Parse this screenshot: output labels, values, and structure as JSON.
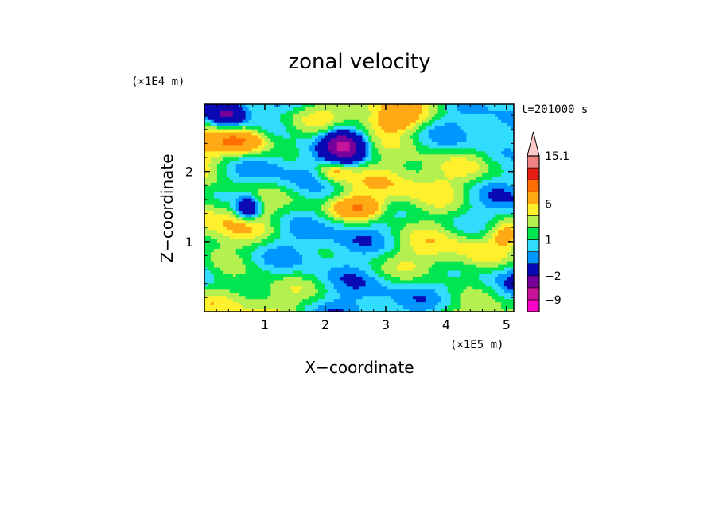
{
  "chart_data": {
    "type": "heatmap",
    "title": "zonal velocity",
    "xlabel": "X−coordinate",
    "ylabel": "Z−coordinate",
    "x_unit_label": "(×1E5 m)",
    "y_unit_label": "(×1E4 m)",
    "time_label": "t=201000 s",
    "xlim": [
      0,
      5.12
    ],
    "ylim": [
      0,
      2.96
    ],
    "x_ticks": [
      1,
      2,
      3,
      4,
      5
    ],
    "y_ticks": [
      1,
      2
    ],
    "colorbar": {
      "levels": [
        -12,
        -9,
        -6,
        -2,
        -1,
        0,
        1,
        2,
        3,
        6,
        9,
        12,
        15.1
      ],
      "labels": [
        {
          "value": 15.1,
          "text": "15.1"
        },
        {
          "value": 6,
          "text": "6"
        },
        {
          "value": 1,
          "text": "1"
        },
        {
          "value": -2,
          "text": "−2"
        },
        {
          "value": -9,
          "text": "−9"
        }
      ],
      "colors": [
        "#ff00c8",
        "#c8149b",
        "#78009b",
        "#0a0ab4",
        "#0096ff",
        "#32dcff",
        "#00e650",
        "#b4f050",
        "#fff02d",
        "#ffaa14",
        "#ff6e00",
        "#e61e14",
        "#f08282",
        "#ffc8c8"
      ],
      "extend_max": true
    }
  }
}
